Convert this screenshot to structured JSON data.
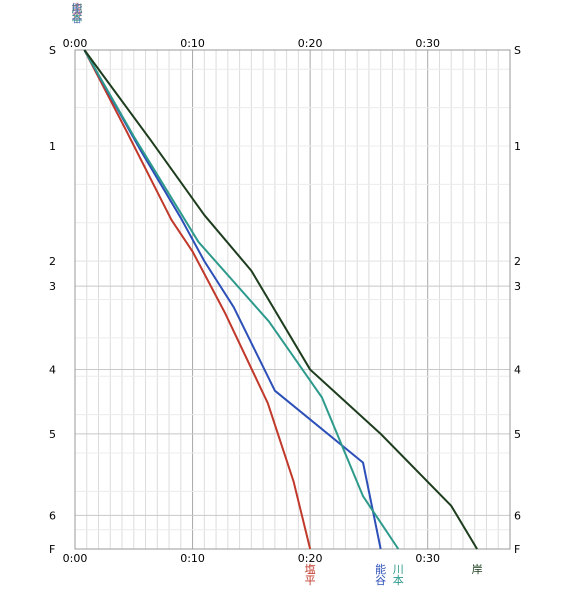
{
  "chart_data": {
    "type": "line",
    "x_unit": "minutes",
    "xlim": [
      0,
      37
    ],
    "x_ticks": [
      {
        "value": 0,
        "label": "0:00"
      },
      {
        "value": 10,
        "label": "0:10"
      },
      {
        "value": 20,
        "label": "0:20"
      },
      {
        "value": 30,
        "label": "0:30"
      }
    ],
    "y_stops": [
      {
        "label": "S",
        "pos": 0
      },
      {
        "label": "1",
        "pos": 1.0
      },
      {
        "label": "2",
        "pos": 2.2
      },
      {
        "label": "3",
        "pos": 2.46
      },
      {
        "label": "4",
        "pos": 3.33
      },
      {
        "label": "5",
        "pos": 4.0
      },
      {
        "label": "6",
        "pos": 4.85
      },
      {
        "label": "F",
        "pos": 5.2
      }
    ],
    "ylim": [
      0,
      5.2
    ],
    "grid": true,
    "series": [
      {
        "name": "塩平",
        "color": "#c0392b",
        "x": [
          0.8,
          4.4,
          8.2,
          10.0,
          12.8,
          16.4,
          18.6,
          20.0
        ],
        "y": [
          0,
          0.85,
          1.77,
          2.1,
          2.75,
          3.68,
          4.5,
          5.2
        ]
      },
      {
        "name": "能谷",
        "color": "#2c4fb8",
        "x": [
          0.8,
          5.6,
          9.0,
          11.0,
          13.5,
          17.0,
          24.5,
          26.0
        ],
        "y": [
          0,
          1.05,
          1.75,
          2.2,
          2.68,
          3.55,
          4.3,
          5.2
        ]
      },
      {
        "name": "川本",
        "color": "#2e9a8c",
        "x": [
          0.8,
          5.0,
          10.5,
          16.5,
          21.0,
          24.5,
          27.5
        ],
        "y": [
          0,
          0.9,
          2.0,
          2.83,
          3.62,
          4.65,
          5.2
        ]
      },
      {
        "name": "岸",
        "color": "#1e3d1e",
        "x": [
          0.8,
          6.5,
          11.0,
          15.0,
          20.0,
          26.0,
          32.0,
          34.2
        ],
        "y": [
          0,
          0.95,
          1.72,
          2.3,
          3.33,
          4.0,
          4.75,
          5.2
        ]
      }
    ],
    "top_labels": [
      "塩",
      "平",
      "能",
      "谷",
      "川",
      "本"
    ]
  }
}
